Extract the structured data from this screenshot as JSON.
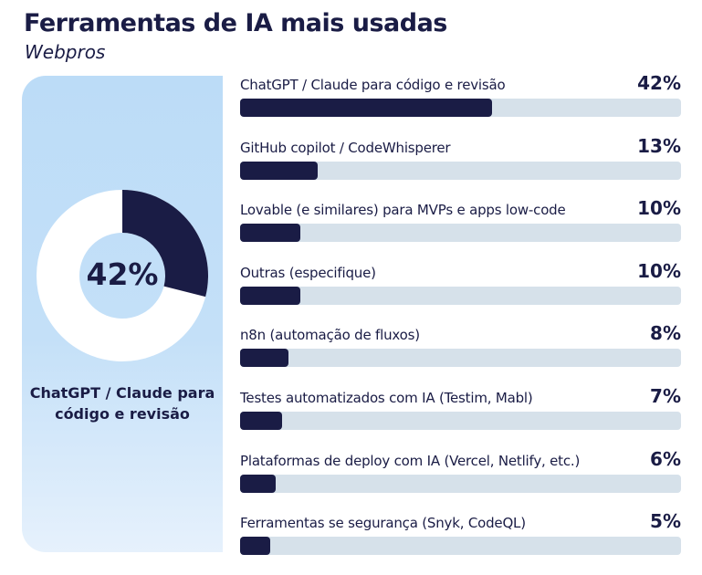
{
  "header": {
    "title": "Ferramentas de IA mais usadas",
    "subtitle": "Webpros"
  },
  "highlight": {
    "value": "42%",
    "label": "ChatGPT / Claude para código e revisão"
  },
  "colors": {
    "primary": "#1a1c45",
    "track": "#d6e1ea",
    "panel": "#bcdcf7"
  },
  "chart_data": {
    "type": "bar",
    "orientation": "horizontal",
    "title": "Ferramentas de IA mais usadas",
    "subtitle": "Webpros",
    "categories": [
      "ChatGPT / Claude para código e revisão",
      "GitHub copilot / CodeWhisperer",
      "Lovable (e similares) para MVPs e apps low-code",
      "Outras (especifique)",
      "n8n (automação de fluxos)",
      "Testes automatizados com IA (Testim, Mabl)",
      "Plataformas de deploy com IA (Vercel, Netlify, etc.)",
      "Ferramentas se segurança (Snyk, CodeQL)"
    ],
    "values": [
      42,
      13,
      10,
      10,
      8,
      7,
      6,
      5
    ],
    "labels": [
      "42%",
      "13%",
      "10%",
      "10%",
      "8%",
      "7%",
      "6%",
      "5%"
    ],
    "unit": "%",
    "donut": {
      "type": "pie",
      "value": 42,
      "label": "ChatGPT / Claude para código e revisão"
    }
  }
}
